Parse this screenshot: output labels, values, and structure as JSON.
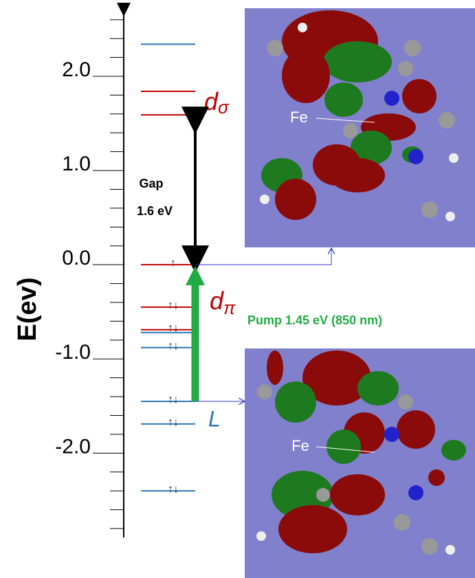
{
  "chart_data": {
    "type": "energy-level",
    "y_label": "E(ev)",
    "ylim": [
      -2.88,
      2.7
    ],
    "yticks": [
      {
        "value": 2,
        "label": "2.0"
      },
      {
        "value": 1,
        "label": "1.0"
      },
      {
        "value": 0,
        "label": "0.0"
      },
      {
        "value": -1,
        "label": "-1.0"
      },
      {
        "value": -2,
        "label": "-2.0"
      }
    ],
    "minor_yticks": [
      2.6,
      2.4,
      2.2,
      1.8,
      1.6,
      1.4,
      1.2,
      0.8,
      0.6,
      0.4,
      0.2,
      -0.2,
      -0.4,
      -0.6,
      -0.8,
      -1.2,
      -1.4,
      -1.6,
      -1.8,
      -2.2,
      -2.4,
      -2.6,
      -2.8
    ],
    "levels": [
      {
        "value": 2.34,
        "color": "#2e75b6",
        "occupancy": null
      },
      {
        "value": 1.84,
        "color": "#c00000",
        "occupancy": null
      },
      {
        "value": 1.59,
        "color": "#c00000",
        "occupancy": null
      },
      {
        "value": 0,
        "color": "#c00000",
        "occupancy": "↑"
      },
      {
        "value": -0.45,
        "color": "#c00000",
        "occupancy": "↑↓"
      },
      {
        "value": -0.69,
        "color": "#c00000",
        "occupancy": "↑↓"
      },
      {
        "value": -0.72,
        "color": "#2e75b6",
        "occupancy": null
      },
      {
        "value": -0.88,
        "color": "#2e75b6",
        "occupancy": "↑↓"
      },
      {
        "value": -1.45,
        "color": "#2e75b6",
        "occupancy": "↑↓"
      },
      {
        "value": -1.69,
        "color": "#2e75b6",
        "occupancy": "↑↓"
      },
      {
        "value": -2.4,
        "color": "#2e75b6",
        "occupancy": "↑↓"
      }
    ],
    "labels": {
      "d_sigma": {
        "main": "d",
        "sub": "σ"
      },
      "d_pi": {
        "main": "d",
        "sub": "π"
      },
      "L": "L",
      "gap": [
        "Gap",
        "1.6 eV"
      ],
      "pump": "Pump 1.45 eV (850 nm)",
      "fe_top": "Fe",
      "fe_bottom": "Fe"
    }
  }
}
